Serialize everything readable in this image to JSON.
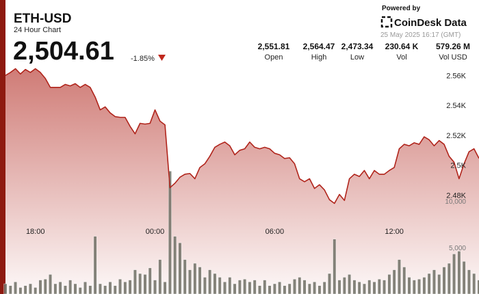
{
  "header": {
    "symbol": "ETH-USD",
    "subtitle": "24 Hour Chart",
    "price": "2,504.61",
    "change": "-1.85%",
    "stats": [
      {
        "value": "2,551.81",
        "label": "Open"
      },
      {
        "value": "2,564.47",
        "label": "High"
      },
      {
        "value": "2,473.34",
        "label": "Low"
      },
      {
        "value": "230.64 K",
        "label": "Vol"
      },
      {
        "value": "579.26 M",
        "label": "Vol USD"
      }
    ],
    "powered_by": "Powered by",
    "brand": "CoinDesk Data",
    "timestamp": "25 May 2025 16:17 (GMT)"
  },
  "chart_data": {
    "type": "line",
    "categories": [
      null,
      null,
      null,
      null,
      null,
      null,
      "18:00",
      null,
      null,
      null,
      null,
      null,
      null,
      null,
      null,
      null,
      null,
      null,
      null,
      null,
      null,
      null,
      null,
      null,
      null,
      null,
      null,
      null,
      null,
      null,
      "00:00",
      null,
      null,
      null,
      null,
      null,
      null,
      null,
      null,
      null,
      null,
      null,
      null,
      null,
      null,
      null,
      null,
      null,
      null,
      null,
      null,
      null,
      null,
      null,
      "06:00",
      null,
      null,
      null,
      null,
      null,
      null,
      null,
      null,
      null,
      null,
      null,
      null,
      null,
      null,
      null,
      null,
      null,
      null,
      null,
      null,
      null,
      null,
      null,
      "12:00",
      null,
      null,
      null,
      null,
      null,
      null,
      null,
      null,
      null,
      null,
      null,
      null,
      null,
      null,
      null,
      null,
      null
    ],
    "series": [
      {
        "color": "#b0241b",
        "values": [
          2560,
          2562,
          2564.5,
          2561,
          2564,
          2562,
          2564.5,
          2562,
          2558,
          2552,
          2552,
          2552,
          2554,
          2553,
          2554.5,
          2552,
          2554,
          2552,
          2545.5,
          2537,
          2539,
          2535,
          2532.5,
          2532,
          2532,
          2526,
          2521,
          2528,
          2527.5,
          2528,
          2537,
          2529.5,
          2527,
          2485,
          2488,
          2492,
          2494,
          2494.5,
          2491,
          2498.5,
          2501,
          2506,
          2512,
          2514,
          2515.5,
          2513,
          2507,
          2510,
          2511,
          2515.5,
          2512,
          2511,
          2512,
          2511,
          2508,
          2507,
          2504.5,
          2505,
          2501,
          2491,
          2489,
          2491,
          2484.5,
          2487,
          2483.5,
          2477,
          2474.5,
          2480.5,
          2476.5,
          2491,
          2494,
          2492.5,
          2496.5,
          2491,
          2496.5,
          2494,
          2494,
          2496.5,
          2498.5,
          2511,
          2514,
          2513,
          2515,
          2514,
          2519,
          2517,
          2513,
          2516.5,
          2514,
          2506,
          2502,
          2491,
          2501,
          2509,
          2511,
          2504.61
        ]
      },
      {
        "type": "bar",
        "axis": "y2",
        "color": "#6e6e64",
        "values": [
          1100,
          900,
          1300,
          700,
          900,
          1100,
          700,
          1500,
          1600,
          2100,
          1100,
          1300,
          900,
          1500,
          1100,
          700,
          1300,
          900,
          6200,
          1100,
          900,
          1300,
          900,
          1600,
          1300,
          1500,
          2600,
          2200,
          2100,
          2800,
          1500,
          3700,
          1300,
          13200,
          6200,
          5500,
          3700,
          2600,
          3300,
          2900,
          1800,
          2600,
          2200,
          1800,
          1300,
          1800,
          1100,
          1500,
          1600,
          1300,
          1500,
          900,
          1500,
          900,
          1100,
          1300,
          900,
          1100,
          1600,
          1800,
          1500,
          1100,
          1300,
          900,
          1300,
          2200,
          5900,
          1500,
          1800,
          2100,
          1500,
          1300,
          1100,
          1500,
          1300,
          1600,
          1500,
          2100,
          2600,
          3700,
          2900,
          1800,
          1500,
          1600,
          1800,
          2200,
          2600,
          2100,
          2900,
          3300,
          4300,
          4600,
          3500,
          2600,
          2200,
          1500
        ]
      }
    ],
    "ylim": [
      2414,
      2567
    ],
    "yticks": [
      {
        "value": 2560,
        "label": "2.56K"
      },
      {
        "value": 2540,
        "label": "2.54K"
      },
      {
        "value": 2520,
        "label": "2.52K"
      },
      {
        "value": 2500,
        "label": "2.5K"
      },
      {
        "value": 2480,
        "label": "2.48K"
      }
    ],
    "y2lim": [
      0,
      24600
    ],
    "y2ticks": [
      {
        "value": 5000,
        "label": "5,000"
      },
      {
        "value": 10000,
        "label": "10,000"
      }
    ]
  }
}
